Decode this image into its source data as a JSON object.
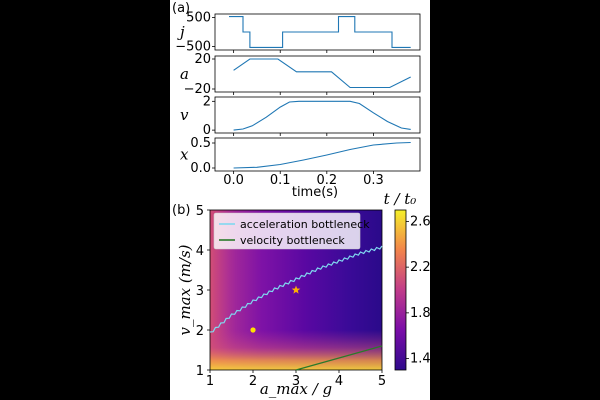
{
  "chart_data": [
    {
      "panel_label": "(a)",
      "type": "line",
      "xlabel": "time(s)",
      "xticks": [
        "0.0",
        "0.1",
        "0.2",
        "0.3"
      ],
      "xlim": [
        -0.04,
        0.4
      ],
      "color": "#1f77b4",
      "subplots": [
        {
          "ylabel": "j",
          "yticks": [
            "500",
            "−500"
          ],
          "ytick_values": [
            500,
            -500
          ],
          "ylim": [
            -620,
            620
          ],
          "x": [
            -0.01,
            0.02,
            0.02,
            0.035,
            0.035,
            0.105,
            0.105,
            0.135,
            0.135,
            0.225,
            0.225,
            0.26,
            0.26,
            0.34,
            0.34,
            0.38
          ],
          "y": [
            530,
            530,
            0,
            0,
            -530,
            -530,
            0,
            0,
            0,
            0,
            530,
            530,
            0,
            0,
            -530,
            -530
          ]
        },
        {
          "ylabel": "a",
          "yticks": [
            "20",
            "−20"
          ],
          "ytick_values": [
            20,
            -20
          ],
          "ylim": [
            -24,
            24
          ],
          "x": [
            0.0,
            0.035,
            0.095,
            0.135,
            0.21,
            0.25,
            0.335,
            0.38
          ],
          "y": [
            5,
            20,
            20,
            3,
            3,
            -18,
            -18,
            -4
          ]
        },
        {
          "ylabel": "v",
          "yticks": [
            "2",
            "0"
          ],
          "ytick_values": [
            2,
            0
          ],
          "ylim": [
            -0.2,
            2.3
          ],
          "x": [
            0.0,
            0.02,
            0.04,
            0.07,
            0.1,
            0.12,
            0.14,
            0.25,
            0.27,
            0.3,
            0.33,
            0.36,
            0.38
          ],
          "y": [
            0.0,
            0.08,
            0.3,
            0.9,
            1.6,
            1.95,
            2.0,
            2.0,
            1.85,
            1.2,
            0.6,
            0.15,
            0.05
          ]
        },
        {
          "ylabel": "x",
          "yticks": [
            "0.5",
            "0.0"
          ],
          "ytick_values": [
            0.5,
            0.0
          ],
          "ylim": [
            -0.06,
            0.6
          ],
          "x": [
            0.0,
            0.05,
            0.1,
            0.15,
            0.2,
            0.25,
            0.3,
            0.35,
            0.38
          ],
          "y": [
            0.0,
            0.015,
            0.07,
            0.16,
            0.26,
            0.37,
            0.46,
            0.5,
            0.51
          ]
        }
      ]
    },
    {
      "panel_label": "(b)",
      "type": "heatmap",
      "xlabel": "a_max / g",
      "ylabel": "v_max (m/s)",
      "xticks": [
        "1",
        "2",
        "3",
        "4",
        "5"
      ],
      "yticks": [
        "1",
        "2",
        "3",
        "4",
        "5"
      ],
      "xlim": [
        1,
        5
      ],
      "ylim": [
        1,
        5
      ],
      "colorbar_label": "t / t₀",
      "colorbar_ticks": [
        "1.4",
        "1.8",
        "2.2",
        "2.6"
      ],
      "colorbar_range": [
        1.3,
        2.7
      ],
      "legend": [
        "acceleration bottleneck",
        "velocity bottleneck"
      ],
      "legend_position": "top-left",
      "series": [
        {
          "name": "acceleration bottleneck",
          "color": "#80d8f0",
          "x": [
            1.0,
            1.5,
            2.0,
            2.5,
            3.0,
            3.5,
            4.0,
            4.5,
            5.0
          ],
          "y": [
            1.95,
            2.4,
            2.75,
            3.05,
            3.3,
            3.55,
            3.75,
            3.95,
            4.1
          ]
        },
        {
          "name": "velocity bottleneck",
          "color": "#2a7a2a",
          "x": [
            3.0,
            4.0,
            5.0
          ],
          "y": [
            1.0,
            1.3,
            1.6
          ]
        }
      ],
      "markers": [
        {
          "shape": "star",
          "x": 3.0,
          "y": 3.0,
          "color": "#ffb000"
        },
        {
          "shape": "circle",
          "x": 2.0,
          "y": 2.0,
          "color": "#ffe000"
        }
      ]
    }
  ]
}
